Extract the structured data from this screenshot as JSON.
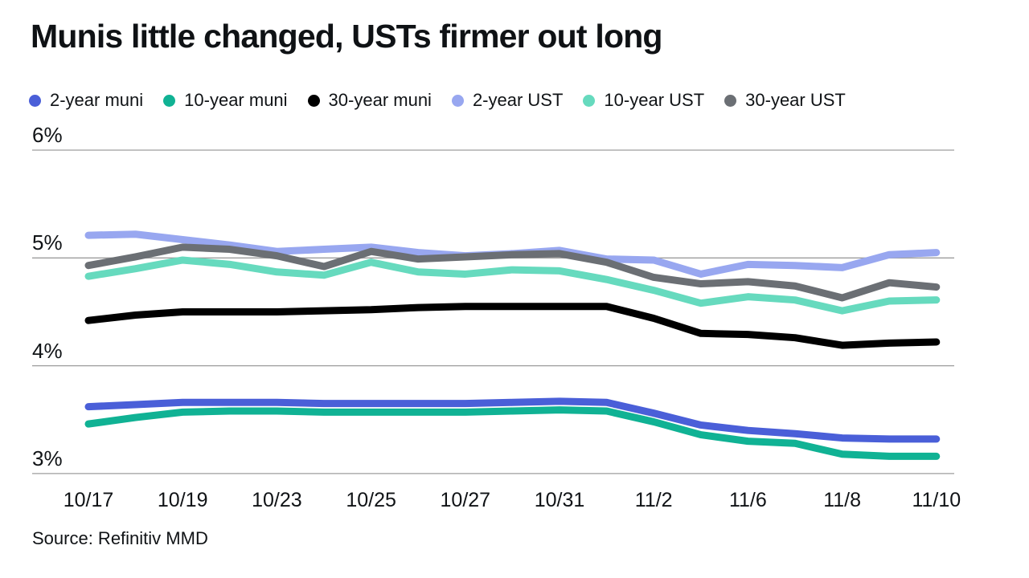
{
  "title": "Munis little changed, USTs firmer out long",
  "source": "Source: Refinitiv MMD",
  "colors": {
    "two_year_muni": "#4A5FD8",
    "ten_year_muni": "#10B294",
    "thirty_year_muni": "#000000",
    "two_year_ust": "#98A7F0",
    "ten_year_ust": "#66DABE",
    "thirty_year_ust": "#6B6F74",
    "gridline": "#9d9d9d",
    "text": "#101316"
  },
  "chart_data": {
    "type": "line",
    "title": "Munis little changed, USTs firmer out long",
    "xlabel": "",
    "ylabel": "",
    "x": [
      "10/17",
      "10/18",
      "10/19",
      "10/20",
      "10/23",
      "10/24",
      "10/25",
      "10/26",
      "10/27",
      "10/30",
      "10/31",
      "11/1",
      "11/2",
      "11/3",
      "11/6",
      "11/7",
      "11/8",
      "11/9",
      "11/10"
    ],
    "x_ticks_shown": [
      "10/17",
      "10/19",
      "10/23",
      "10/25",
      "10/27",
      "10/31",
      "11/2",
      "11/6",
      "11/8",
      "11/10"
    ],
    "x_tick_every": 2,
    "y_ticks": [
      {
        "value": 6,
        "label": "6%"
      },
      {
        "value": 5,
        "label": "5%"
      },
      {
        "value": 4,
        "label": "4%"
      },
      {
        "value": 3,
        "label": "3%"
      }
    ],
    "ylim": [
      2.85,
      6.0
    ],
    "grid": "horizontal",
    "legend_position": "top",
    "series": [
      {
        "name": "2-year muni",
        "color": "#4A5FD8",
        "values": [
          3.62,
          3.64,
          3.66,
          3.66,
          3.66,
          3.65,
          3.65,
          3.65,
          3.65,
          3.66,
          3.67,
          3.66,
          3.56,
          3.45,
          3.4,
          3.37,
          3.33,
          3.32,
          3.32
        ]
      },
      {
        "name": "10-year muni",
        "color": "#10B294",
        "values": [
          3.46,
          3.52,
          3.57,
          3.58,
          3.58,
          3.57,
          3.57,
          3.57,
          3.57,
          3.58,
          3.59,
          3.58,
          3.48,
          3.36,
          3.3,
          3.28,
          3.18,
          3.16,
          3.16
        ]
      },
      {
        "name": "30-year muni",
        "color": "#000000",
        "values": [
          4.42,
          4.47,
          4.5,
          4.5,
          4.5,
          4.51,
          4.52,
          4.54,
          4.55,
          4.55,
          4.55,
          4.55,
          4.44,
          4.3,
          4.29,
          4.26,
          4.19,
          4.21,
          4.22
        ]
      },
      {
        "name": "2-year UST",
        "color": "#98A7F0",
        "values": [
          5.21,
          5.22,
          5.17,
          5.12,
          5.06,
          5.08,
          5.1,
          5.05,
          5.02,
          5.04,
          5.07,
          4.99,
          4.98,
          4.85,
          4.94,
          4.93,
          4.91,
          5.03,
          5.05
        ]
      },
      {
        "name": "10-year UST",
        "color": "#66DABE",
        "values": [
          4.83,
          4.9,
          4.98,
          4.94,
          4.87,
          4.84,
          4.96,
          4.87,
          4.85,
          4.89,
          4.88,
          4.8,
          4.7,
          4.58,
          4.64,
          4.61,
          4.51,
          4.6,
          4.61
        ]
      },
      {
        "name": "30-year UST",
        "color": "#6B6F74",
        "values": [
          4.93,
          5.01,
          5.1,
          5.08,
          5.02,
          4.92,
          5.06,
          4.99,
          5.01,
          5.03,
          5.04,
          4.96,
          4.82,
          4.76,
          4.78,
          4.74,
          4.63,
          4.77,
          4.73
        ]
      }
    ]
  }
}
